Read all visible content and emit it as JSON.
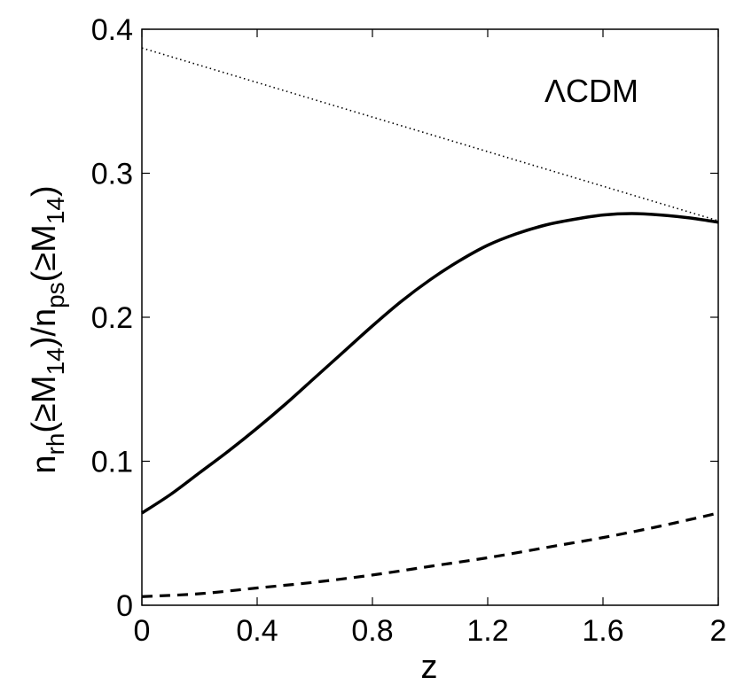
{
  "chart_data": {
    "type": "line",
    "title": "",
    "xlabel": "z",
    "ylabel": {
      "parts": [
        "n",
        "rh",
        "(≥M",
        "14",
        ")/n",
        "ps",
        "(≥M",
        "14",
        ")"
      ]
    },
    "xlim": [
      0,
      2
    ],
    "ylim": [
      0,
      0.4
    ],
    "xticks": [
      0,
      0.4,
      0.8,
      1.2,
      1.6,
      2
    ],
    "xtick_labels": [
      "0",
      "0.4",
      "0.8",
      "1.2",
      "1.6",
      "2"
    ],
    "yticks": [
      0,
      0.1,
      0.2,
      0.3,
      0.4
    ],
    "ytick_labels": [
      "0",
      "0.1",
      "0.2",
      "0.3",
      "0.4"
    ],
    "grid": false,
    "annotation": "ΛCDM",
    "series": [
      {
        "style": "solid",
        "color": "#000000",
        "x": [
          0,
          0.1,
          0.2,
          0.3,
          0.4,
          0.5,
          0.6,
          0.7,
          0.8,
          0.9,
          1.0,
          1.1,
          1.2,
          1.3,
          1.4,
          1.5,
          1.6,
          1.7,
          1.8,
          1.9,
          2.0
        ],
        "y": [
          0.064,
          0.077,
          0.092,
          0.107,
          0.123,
          0.14,
          0.158,
          0.176,
          0.194,
          0.211,
          0.226,
          0.239,
          0.25,
          0.258,
          0.264,
          0.268,
          0.271,
          0.272,
          0.271,
          0.269,
          0.266
        ]
      },
      {
        "style": "dashed",
        "color": "#000000",
        "x": [
          0,
          0.2,
          0.4,
          0.6,
          0.8,
          1.0,
          1.2,
          1.4,
          1.6,
          1.8,
          2.0
        ],
        "y": [
          0.006,
          0.008,
          0.012,
          0.016,
          0.021,
          0.027,
          0.033,
          0.04,
          0.047,
          0.055,
          0.064
        ]
      },
      {
        "style": "dotted",
        "color": "#000000",
        "x": [
          0,
          2
        ],
        "y": [
          0.387,
          0.267
        ]
      }
    ]
  }
}
